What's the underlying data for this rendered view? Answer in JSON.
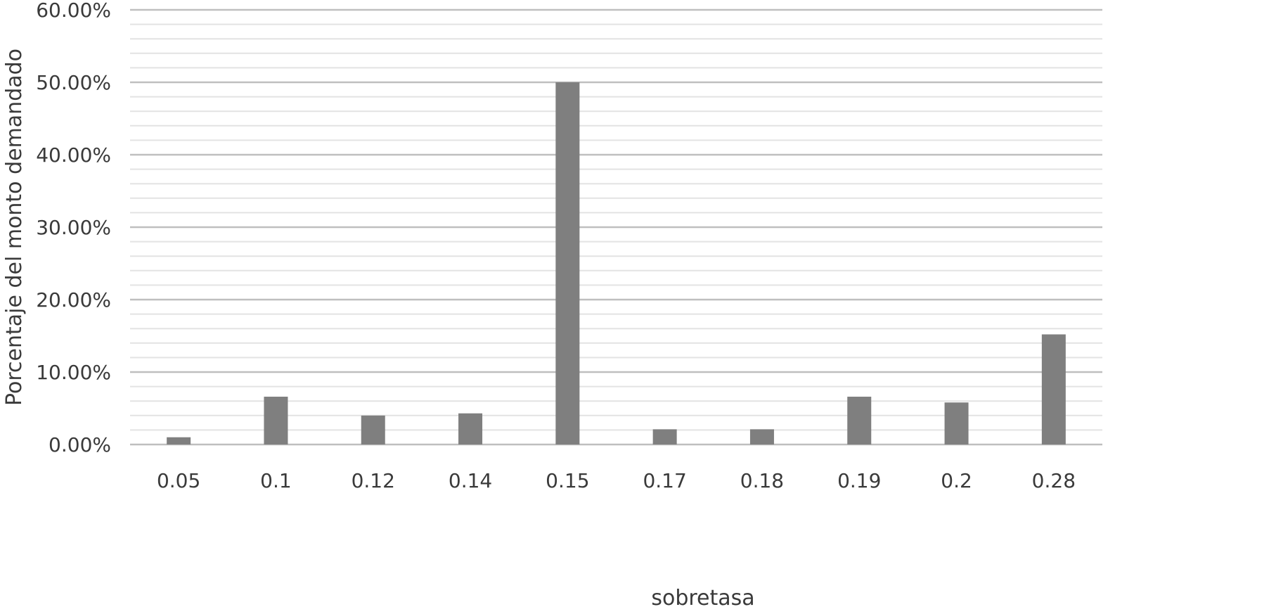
{
  "chart_data": {
    "type": "bar",
    "title": "",
    "xlabel": "sobretasa",
    "ylabel": "Porcentaje del monto demandado",
    "categories": [
      "0.05",
      "0.1",
      "0.12",
      "0.14",
      "0.15",
      "0.17",
      "0.18",
      "0.19",
      "0.2",
      "0.28"
    ],
    "values": [
      1.0,
      6.6,
      4.0,
      4.3,
      50.0,
      2.1,
      2.1,
      6.6,
      5.8,
      15.2
    ],
    "value_format": "percent",
    "ylim": [
      0,
      60
    ],
    "y_major_ticks": [
      "0.00%",
      "10.00%",
      "20.00%",
      "30.00%",
      "40.00%",
      "50.00%",
      "60.00%"
    ],
    "y_minor_step": 2,
    "grid": true,
    "legend": "none",
    "colors": {
      "bar": "#7f7f7f",
      "major_grid": "#bfbfbf",
      "minor_grid": "#e3e3e3",
      "text": "#3a3a3a"
    }
  }
}
